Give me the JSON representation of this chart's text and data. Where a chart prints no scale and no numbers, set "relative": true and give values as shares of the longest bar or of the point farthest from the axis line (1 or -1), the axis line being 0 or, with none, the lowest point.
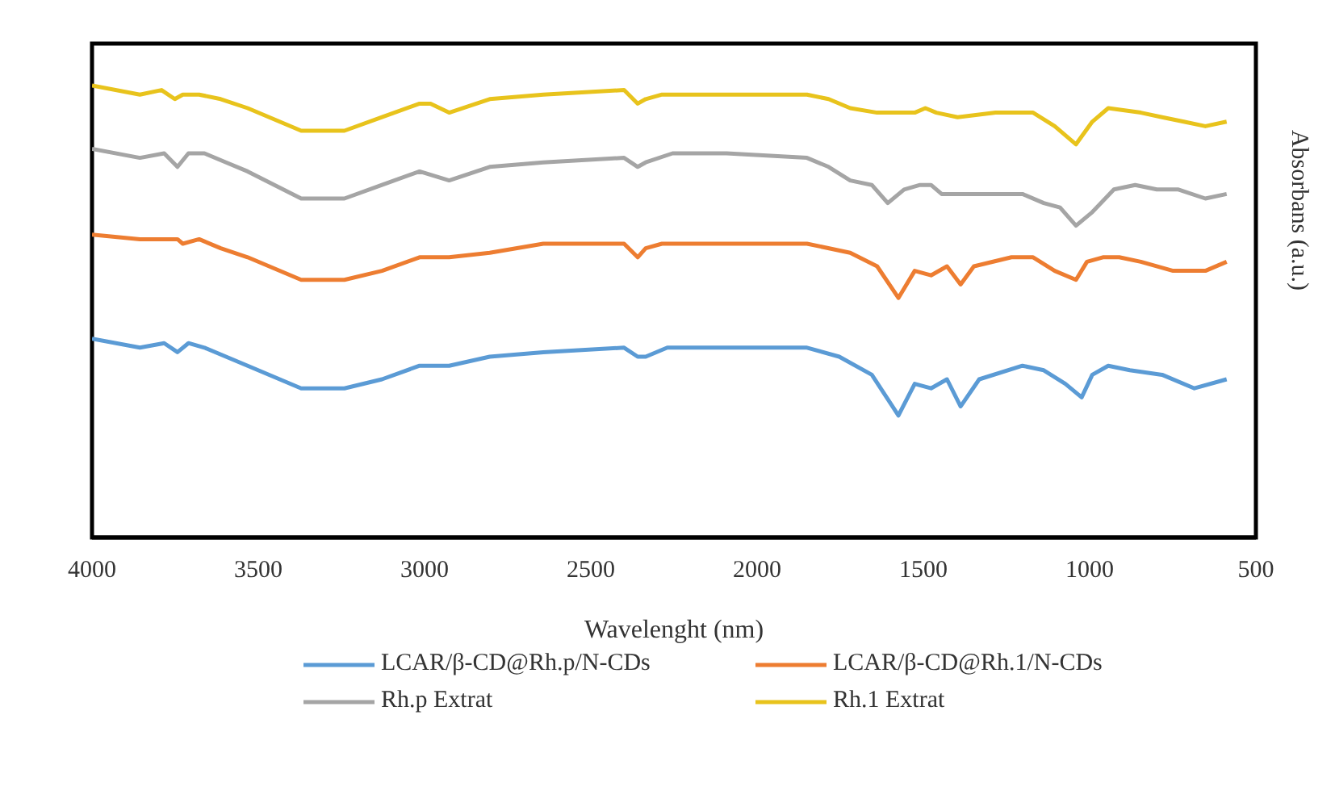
{
  "chart_data": {
    "type": "line",
    "relative": true,
    "xlabel": "Wavelenght (nm)",
    "ylabel": "Absorbans (a.u.)",
    "xlim": [
      4000,
      500
    ],
    "xticks": [
      4000,
      3500,
      3000,
      2500,
      2000,
      1500,
      1000,
      500
    ],
    "grid": false,
    "legend": "bottom",
    "marker": "none",
    "line_style": "solid",
    "series": [
      {
        "name": "LCAR/β-CD@Rh.p/N-CDs",
        "color": "#5b9bd5",
        "x": [
          4000,
          3856,
          3783,
          3743,
          3710,
          3662,
          3532,
          3371,
          3241,
          3128,
          3015,
          2926,
          2804,
          2643,
          2400,
          2359,
          2335,
          2270,
          1850,
          1753,
          1655,
          1575,
          1526,
          1477,
          1429,
          1388,
          1332,
          1202,
          1138,
          1073,
          1024,
          992,
          944,
          879,
          782,
          685,
          588
        ],
        "values": [
          0.44,
          0.42,
          0.43,
          0.41,
          0.43,
          0.42,
          0.38,
          0.33,
          0.33,
          0.35,
          0.38,
          0.38,
          0.4,
          0.41,
          0.42,
          0.4,
          0.4,
          0.42,
          0.42,
          0.4,
          0.36,
          0.27,
          0.34,
          0.33,
          0.35,
          0.29,
          0.35,
          0.38,
          0.37,
          0.34,
          0.31,
          0.36,
          0.38,
          0.37,
          0.36,
          0.33,
          0.35
        ]
      },
      {
        "name": "LCAR/β-CD@Rh.1/N-CDs",
        "color": "#ed7d31",
        "x": [
          4000,
          3856,
          3743,
          3727,
          3678,
          3613,
          3532,
          3371,
          3241,
          3128,
          3015,
          2926,
          2804,
          2643,
          2400,
          2359,
          2335,
          2286,
          1850,
          1720,
          1639,
          1575,
          1526,
          1477,
          1429,
          1388,
          1348,
          1235,
          1170,
          1105,
          1041,
          1008,
          960,
          911,
          846,
          749,
          652,
          588
        ],
        "values": [
          0.67,
          0.66,
          0.66,
          0.65,
          0.66,
          0.64,
          0.62,
          0.57,
          0.57,
          0.59,
          0.62,
          0.62,
          0.63,
          0.65,
          0.65,
          0.62,
          0.64,
          0.65,
          0.65,
          0.63,
          0.6,
          0.53,
          0.59,
          0.58,
          0.6,
          0.56,
          0.6,
          0.62,
          0.62,
          0.59,
          0.57,
          0.61,
          0.62,
          0.62,
          0.61,
          0.59,
          0.59,
          0.61
        ]
      },
      {
        "name": "Rh.p Extrat",
        "color": "#a5a5a5",
        "x": [
          4000,
          3856,
          3783,
          3743,
          3710,
          3662,
          3597,
          3532,
          3371,
          3241,
          3128,
          3015,
          2926,
          2804,
          2643,
          2400,
          2359,
          2335,
          2254,
          2092,
          1850,
          1785,
          1720,
          1655,
          1607,
          1558,
          1510,
          1477,
          1445,
          1364,
          1283,
          1202,
          1138,
          1089,
          1041,
          992,
          927,
          863,
          798,
          733,
          652,
          588
        ],
        "values": [
          0.86,
          0.84,
          0.85,
          0.82,
          0.85,
          0.85,
          0.83,
          0.81,
          0.75,
          0.75,
          0.78,
          0.81,
          0.79,
          0.82,
          0.83,
          0.84,
          0.82,
          0.83,
          0.85,
          0.85,
          0.84,
          0.82,
          0.79,
          0.78,
          0.74,
          0.77,
          0.78,
          0.78,
          0.76,
          0.76,
          0.76,
          0.76,
          0.74,
          0.73,
          0.69,
          0.72,
          0.77,
          0.78,
          0.77,
          0.77,
          0.75,
          0.76
        ]
      },
      {
        "name": "Rh.1 Extrat",
        "color": "#e8c31c",
        "x": [
          4000,
          3856,
          3791,
          3751,
          3727,
          3678,
          3613,
          3532,
          3371,
          3241,
          3128,
          3015,
          2982,
          2926,
          2804,
          2643,
          2400,
          2359,
          2335,
          2286,
          2092,
          1850,
          1785,
          1720,
          1639,
          1526,
          1494,
          1461,
          1397,
          1283,
          1170,
          1105,
          1041,
          992,
          944,
          846,
          782,
          717,
          652,
          588
        ],
        "values": [
          1.0,
          0.98,
          0.99,
          0.97,
          0.98,
          0.98,
          0.97,
          0.95,
          0.9,
          0.9,
          0.93,
          0.96,
          0.96,
          0.94,
          0.97,
          0.98,
          0.99,
          0.96,
          0.97,
          0.98,
          0.98,
          0.98,
          0.97,
          0.95,
          0.94,
          0.94,
          0.95,
          0.94,
          0.93,
          0.94,
          0.94,
          0.91,
          0.87,
          0.92,
          0.95,
          0.94,
          0.93,
          0.92,
          0.91,
          0.92
        ]
      }
    ]
  }
}
